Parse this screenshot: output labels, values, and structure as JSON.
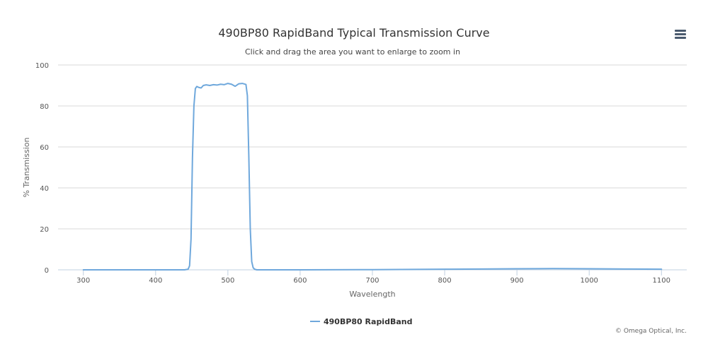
{
  "chart_data": {
    "type": "line",
    "title": "490BP80 RapidBand Typical Transmission Curve",
    "subtitle": "Click and drag the area you want to enlarge to zoom in",
    "xlabel": "Wavelength",
    "ylabel": "% Transmission",
    "xlim": [
      265,
      1135
    ],
    "ylim": [
      0,
      100
    ],
    "x_ticks": [
      300,
      400,
      500,
      600,
      700,
      800,
      900,
      1000,
      1100
    ],
    "y_ticks": [
      0,
      20,
      40,
      60,
      80,
      100
    ],
    "grid": "horizontal",
    "legend_position": "bottom-center",
    "series": [
      {
        "name": "490BP80 RapidBand",
        "color": "#6fa8dc",
        "x": [
          300,
          400,
          440,
          445,
          447,
          449,
          451,
          453,
          455,
          457,
          460,
          463,
          466,
          470,
          475,
          480,
          485,
          490,
          495,
          500,
          505,
          510,
          515,
          520,
          525,
          527,
          529,
          531,
          533,
          535,
          537,
          540,
          600,
          700,
          800,
          850,
          900,
          950,
          1000,
          1050,
          1100
        ],
        "y": [
          0,
          0,
          0,
          0.3,
          2,
          15,
          55,
          80,
          88.5,
          89.5,
          89,
          88.8,
          90,
          90.3,
          90,
          90.4,
          90.2,
          90.6,
          90.4,
          91,
          90.6,
          89.6,
          90.8,
          91,
          90.5,
          85,
          55,
          20,
          4,
          1,
          0.3,
          0,
          0,
          0.1,
          0.3,
          0.4,
          0.5,
          0.6,
          0.5,
          0.4,
          0.3
        ]
      }
    ]
  },
  "icons": {
    "menu": "hamburger-menu-icon"
  },
  "credits": "© Omega Optical, Inc."
}
